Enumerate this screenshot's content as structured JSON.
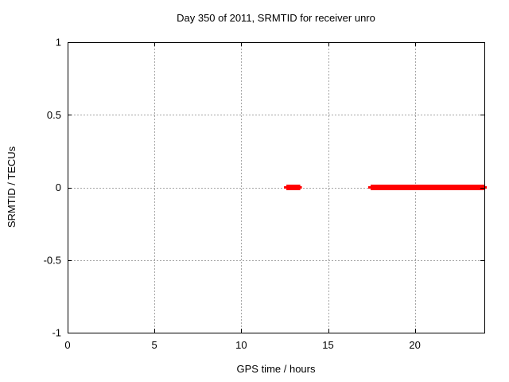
{
  "chart_data": {
    "type": "line",
    "title": "Day 350 of 2011, SRMTID for receiver unro",
    "xlabel": "GPS time / hours",
    "ylabel": "SRMTID / TECUs",
    "xlim": [
      0,
      24
    ],
    "ylim": [
      -1,
      1
    ],
    "grid": true,
    "xticks": [
      {
        "value": 0,
        "label": "0"
      },
      {
        "value": 5,
        "label": "5"
      },
      {
        "value": 10,
        "label": "10"
      },
      {
        "value": 15,
        "label": "15"
      },
      {
        "value": 20,
        "label": "20"
      }
    ],
    "yticks": [
      {
        "value": 1,
        "label": "1"
      },
      {
        "value": 0.5,
        "label": "0.5"
      },
      {
        "value": 0,
        "label": "0"
      },
      {
        "value": -0.5,
        "label": "-0.5"
      },
      {
        "value": -1,
        "label": "-1"
      }
    ],
    "series": [
      {
        "name": "SRMTID",
        "color": "#ff0000",
        "y": 0,
        "intervals": [
          {
            "start": 12.6,
            "end": 13.4
          },
          {
            "start": 17.45,
            "end": 24.05
          }
        ]
      }
    ],
    "colors": {
      "background": "#ffffff",
      "axis": "#000000",
      "grid": "#a6a6a6",
      "text": "#000000"
    }
  }
}
